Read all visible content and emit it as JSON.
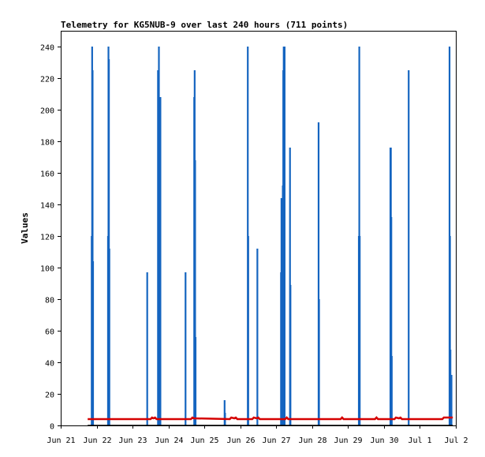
{
  "chart_data": {
    "type": "line",
    "title": "Telemetry for KG5NUB-9 over last 240 hours (711 points)",
    "xlabel": "",
    "ylabel": "Values",
    "x_ticks": [
      "Jun 21",
      "Jun 22",
      "Jun 23",
      "Jun 24",
      "Jun 25",
      "Jun 26",
      "Jun 27",
      "Jun 28",
      "Jun 29",
      "Jun 30",
      "Jul 1",
      "Jul 2"
    ],
    "xlim_hours": [
      0,
      264
    ],
    "ylim": [
      0,
      250
    ],
    "y_ticks": [
      0,
      20,
      40,
      60,
      80,
      100,
      120,
      140,
      160,
      180,
      200,
      220,
      240
    ],
    "grid": false,
    "legend": "none",
    "colors": {
      "spikes": "#1565c0",
      "baseline": "#d50000",
      "floor": "#000000",
      "frame": "#000000"
    },
    "series": [
      {
        "values_description_omitted": false,
        "color_key": "spikes",
        "style": "spikes",
        "points": [
          [
            20.7,
            120
          ],
          [
            21.0,
            240
          ],
          [
            21.3,
            225
          ],
          [
            21.6,
            104
          ],
          [
            31.6,
            120
          ],
          [
            31.9,
            240
          ],
          [
            32.2,
            232
          ],
          [
            32.5,
            112
          ],
          [
            57.8,
            97
          ],
          [
            65.0,
            225
          ],
          [
            65.3,
            208
          ],
          [
            65.6,
            240
          ],
          [
            65.9,
            192
          ],
          [
            66.3,
            208
          ],
          [
            66.6,
            208
          ],
          [
            83.4,
            97
          ],
          [
            89.2,
            208
          ],
          [
            89.5,
            225
          ],
          [
            89.8,
            168
          ],
          [
            90.1,
            56
          ],
          [
            109.5,
            16
          ],
          [
            109.8,
            8
          ],
          [
            125.0,
            240
          ],
          [
            125.3,
            120
          ],
          [
            131.4,
            112
          ],
          [
            147.2,
            97
          ],
          [
            147.5,
            144
          ],
          [
            147.8,
            144
          ],
          [
            148.1,
            120
          ],
          [
            148.4,
            152
          ],
          [
            148.7,
            225
          ],
          [
            149.0,
            240
          ],
          [
            149.3,
            240
          ],
          [
            149.6,
            240
          ],
          [
            153.2,
            176
          ],
          [
            153.5,
            89
          ],
          [
            172.3,
            192
          ],
          [
            172.6,
            80
          ],
          [
            199.2,
            120
          ],
          [
            199.5,
            240
          ],
          [
            199.8,
            120
          ],
          [
            220.3,
            176
          ],
          [
            220.6,
            176
          ],
          [
            220.9,
            132
          ],
          [
            221.2,
            44
          ],
          [
            232.5,
            225
          ],
          [
            259.8,
            240
          ],
          [
            260.1,
            120
          ],
          [
            260.4,
            48
          ],
          [
            260.8,
            24
          ],
          [
            261.1,
            32
          ]
        ]
      },
      {
        "color_key": "baseline",
        "style": "line",
        "points": [
          [
            18,
            4
          ],
          [
            60,
            4
          ],
          [
            61,
            5
          ],
          [
            62,
            4.5
          ],
          [
            63,
            5
          ],
          [
            64,
            4
          ],
          [
            87,
            4
          ],
          [
            88,
            5
          ],
          [
            89,
            4.5
          ],
          [
            113,
            4
          ],
          [
            114,
            5
          ],
          [
            116,
            4.5
          ],
          [
            117,
            5
          ],
          [
            118,
            4
          ],
          [
            128,
            4
          ],
          [
            129,
            5
          ],
          [
            131,
            4.5
          ],
          [
            132,
            5
          ],
          [
            133,
            4
          ],
          [
            150,
            4
          ],
          [
            151,
            5
          ],
          [
            152,
            4
          ],
          [
            163,
            4
          ],
          [
            187,
            4
          ],
          [
            188,
            5
          ],
          [
            189,
            4
          ],
          [
            210,
            4
          ],
          [
            211,
            5
          ],
          [
            212,
            4
          ],
          [
            223,
            4
          ],
          [
            224,
            5
          ],
          [
            226,
            4.5
          ],
          [
            227,
            5
          ],
          [
            228,
            4
          ],
          [
            240,
            4
          ],
          [
            255,
            4
          ],
          [
            256,
            5
          ],
          [
            258,
            5
          ],
          [
            262,
            5
          ]
        ]
      },
      {
        "color_key": "floor",
        "style": "line",
        "points": [
          [
            18,
            0
          ],
          [
            262,
            0
          ]
        ]
      }
    ]
  }
}
